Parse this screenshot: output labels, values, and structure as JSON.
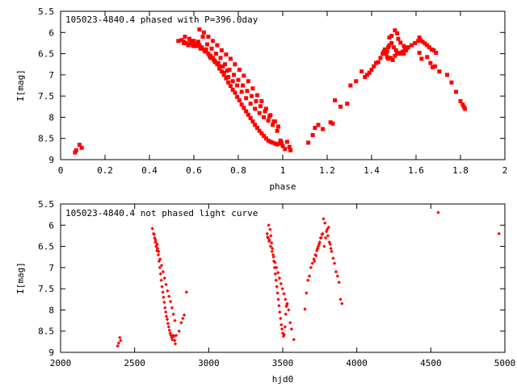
{
  "colors": {
    "points": "#ff0000",
    "axes": "#000000",
    "background": "#ffffff"
  },
  "chart_data": [
    {
      "type": "scatter",
      "title": "105023-4840.4 phased with P=396.0day",
      "xlabel": "phase",
      "ylabel": "I[mag]",
      "xlim": [
        0,
        2
      ],
      "ylim": [
        5.5,
        9
      ],
      "y_inverted": true,
      "grid": false,
      "marker": "filled square",
      "x_ticks": [
        "0",
        "0.2",
        "0.4",
        "0.6",
        "0.8",
        "1",
        "1.2",
        "1.4",
        "1.6",
        "1.8",
        "2"
      ],
      "y_ticks": [
        "5.5",
        "6",
        "6.5",
        "7",
        "7.5",
        "8",
        "8.5",
        "9"
      ],
      "series": [
        {
          "x": [
            0.065,
            0.07,
            0.085,
            0.095,
            0.53,
            0.545,
            0.555,
            0.565,
            0.575,
            0.585,
            0.595,
            0.605,
            0.615,
            0.625,
            0.635,
            0.645,
            0.655,
            0.665,
            0.675,
            0.685,
            0.695,
            0.705,
            0.715,
            0.725,
            0.735,
            0.745,
            0.755,
            0.765,
            0.775,
            0.785,
            0.795,
            0.805,
            0.815,
            0.825,
            0.835,
            0.845,
            0.855,
            0.865,
            0.875,
            0.885,
            0.895,
            0.905,
            0.915,
            0.925,
            0.935,
            0.945,
            0.955,
            0.965,
            0.975,
            0.985,
            0.995,
            0.56,
            0.58,
            0.6,
            0.62,
            0.64,
            0.66,
            0.68,
            0.7,
            0.72,
            0.74,
            0.76,
            0.78,
            0.8,
            0.82,
            0.84,
            0.86,
            0.88,
            0.9,
            0.92,
            0.94,
            0.96,
            0.98,
            0.555,
            0.575,
            0.595,
            0.615,
            0.635,
            0.655,
            0.675,
            0.695,
            0.715,
            0.735,
            0.755,
            0.775,
            0.795,
            0.815,
            0.835,
            0.855,
            0.875,
            0.895,
            0.915,
            0.935,
            0.955,
            0.975,
            0.99,
            0.625,
            0.645,
            0.665,
            0.685,
            0.705,
            0.725,
            0.745,
            0.765,
            0.785,
            0.805,
            0.825,
            0.845,
            0.865,
            0.885,
            0.905,
            0.925,
            0.945,
            0.965,
            0.6,
            0.63,
            0.65,
            0.67,
            0.69,
            0.71,
            0.73,
            0.75,
            1.0,
            1.01,
            1.02,
            1.03,
            1.035,
            1.115,
            1.135,
            1.145,
            1.16,
            1.18,
            1.215,
            1.225,
            1.235,
            1.26,
            1.29,
            1.305,
            1.33,
            1.355,
            1.37,
            1.38,
            1.39,
            1.4,
            1.41,
            1.42,
            1.43,
            1.44,
            1.45,
            1.455,
            1.46,
            1.47,
            1.475,
            1.48,
            1.49,
            1.5,
            1.51,
            1.52,
            1.53,
            1.54,
            1.55,
            1.56,
            1.48,
            1.49,
            1.505,
            1.515,
            1.52,
            1.53,
            1.545,
            1.465,
            1.47,
            1.475,
            1.485,
            1.495,
            1.505,
            1.515,
            1.525,
            1.535,
            1.545,
            1.555,
            1.565,
            1.58,
            1.595,
            1.61,
            1.615,
            1.62,
            1.63,
            1.64,
            1.65,
            1.66,
            1.67,
            1.68,
            1.69,
            1.615,
            1.625,
            1.65,
            1.665,
            1.675,
            1.685,
            1.705,
            1.74,
            1.76,
            1.78,
            1.8,
            1.81,
            1.815,
            1.82
          ],
          "y": [
            8.83,
            8.78,
            8.65,
            8.72,
            6.2,
            6.18,
            6.22,
            6.25,
            6.28,
            6.24,
            6.2,
            6.3,
            6.26,
            6.3,
            6.35,
            6.4,
            6.45,
            6.5,
            6.55,
            6.6,
            6.68,
            6.75,
            6.85,
            6.92,
            7.0,
            7.08,
            7.18,
            7.26,
            7.35,
            7.42,
            7.52,
            7.6,
            7.7,
            7.78,
            7.86,
            7.94,
            8.02,
            8.1,
            8.18,
            8.25,
            8.32,
            8.38,
            8.44,
            8.5,
            8.55,
            8.58,
            8.6,
            8.62,
            8.64,
            8.62,
            8.6,
            6.1,
            6.15,
            6.2,
            6.22,
            6.1,
            6.28,
            6.38,
            6.5,
            6.6,
            6.75,
            6.88,
            7.0,
            7.12,
            7.25,
            7.38,
            7.5,
            7.62,
            7.74,
            7.86,
            7.98,
            8.1,
            8.22,
            6.25,
            6.3,
            6.3,
            6.32,
            6.36,
            6.4,
            6.6,
            6.7,
            6.8,
            6.95,
            7.05,
            7.15,
            7.25,
            7.4,
            7.55,
            7.68,
            7.8,
            7.9,
            8.0,
            8.08,
            8.18,
            8.32,
            8.55,
            5.93,
            6.0,
            6.1,
            6.2,
            6.3,
            6.42,
            6.52,
            6.62,
            6.75,
            6.88,
            7.02,
            7.15,
            7.32,
            7.48,
            7.62,
            7.8,
            7.95,
            8.1,
            6.32,
            6.38,
            6.45,
            6.55,
            6.65,
            6.72,
            6.8,
            6.9,
            8.68,
            8.75,
            8.58,
            8.7,
            8.78,
            8.6,
            8.42,
            8.25,
            8.18,
            8.28,
            8.12,
            8.15,
            7.6,
            7.75,
            7.68,
            7.25,
            7.15,
            6.92,
            7.05,
            7.0,
            6.95,
            6.88,
            6.8,
            6.72,
            6.7,
            6.6,
            6.5,
            6.45,
            6.4,
            6.45,
            6.35,
            6.3,
            6.25,
            6.35,
            6.42,
            6.48,
            6.5,
            6.45,
            6.4,
            6.36,
            6.12,
            6.08,
            5.95,
            6.02,
            6.15,
            6.24,
            6.32,
            6.5,
            6.58,
            6.62,
            6.6,
            6.65,
            6.55,
            6.5,
            6.48,
            6.5,
            6.5,
            6.42,
            6.35,
            6.3,
            6.25,
            6.2,
            6.12,
            6.18,
            6.22,
            6.26,
            6.3,
            6.35,
            6.4,
            6.42,
            6.48,
            6.48,
            6.62,
            6.58,
            6.72,
            6.82,
            6.8,
            6.92,
            7.0,
            7.18,
            7.4,
            7.62,
            7.7,
            7.75,
            7.8
          ]
        }
      ]
    },
    {
      "type": "scatter",
      "title": "105023-4840.4 not phased light curve",
      "xlabel": "hjd0",
      "ylabel": "I[mag]",
      "xlim": [
        2000,
        5000
      ],
      "ylim": [
        5.5,
        9
      ],
      "y_inverted": true,
      "grid": false,
      "marker": "filled diamond",
      "x_ticks": [
        "2000",
        "2500",
        "3000",
        "3500",
        "4000",
        "4500",
        "5000"
      ],
      "y_ticks": [
        "5.5",
        "6",
        "6.5",
        "7",
        "7.5",
        "8",
        "8.5",
        "9"
      ],
      "series": [
        {
          "x": [
            2385,
            2392,
            2400,
            2405,
            2620,
            2628,
            2635,
            2640,
            2645,
            2650,
            2655,
            2660,
            2665,
            2670,
            2675,
            2680,
            2685,
            2690,
            2695,
            2700,
            2705,
            2710,
            2715,
            2720,
            2725,
            2730,
            2735,
            2740,
            2745,
            2750,
            2755,
            2760,
            2765,
            2770,
            2775,
            2632,
            2642,
            2652,
            2662,
            2672,
            2682,
            2692,
            2702,
            2712,
            2722,
            2732,
            2742,
            2752,
            2762,
            2772,
            2780,
            2800,
            2815,
            2825,
            2835,
            2850,
            3395,
            3400,
            3405,
            3410,
            3415,
            3420,
            3425,
            3430,
            3435,
            3440,
            3445,
            3450,
            3455,
            3460,
            3465,
            3470,
            3475,
            3480,
            3485,
            3490,
            3495,
            3500,
            3505,
            3510,
            3515,
            3520,
            3525,
            3530,
            3540,
            3550,
            3560,
            3575,
            3398,
            3408,
            3418,
            3428,
            3438,
            3448,
            3458,
            3468,
            3478,
            3488,
            3498,
            3508,
            3518,
            3528,
            3650,
            3660,
            3670,
            3680,
            3690,
            3700,
            3710,
            3720,
            3730,
            3740,
            3750,
            3760,
            3770,
            3780,
            3790,
            3800,
            3810,
            3820,
            3830,
            3840,
            3850,
            3860,
            3870,
            3880,
            3890,
            3900,
            3715,
            3725,
            3735,
            3745,
            3755,
            3765,
            3775,
            3785,
            3795,
            3805,
            3815,
            3825,
            4550,
            4960
          ],
          "y": [
            8.85,
            8.78,
            8.65,
            8.72,
            6.08,
            6.2,
            6.3,
            6.4,
            6.5,
            6.6,
            6.55,
            6.7,
            6.85,
            7.0,
            7.15,
            7.3,
            7.45,
            7.58,
            7.7,
            7.82,
            7.95,
            8.05,
            8.15,
            8.22,
            8.32,
            8.4,
            8.48,
            8.55,
            8.6,
            8.65,
            8.7,
            8.6,
            8.62,
            8.72,
            8.8,
            6.22,
            6.35,
            6.45,
            6.62,
            6.8,
            6.95,
            7.1,
            7.25,
            7.4,
            7.55,
            7.68,
            7.8,
            7.95,
            8.1,
            8.25,
            8.6,
            8.5,
            8.3,
            8.2,
            8.12,
            7.58,
            6.2,
            6.3,
            6.0,
            6.35,
            6.1,
            6.25,
            6.42,
            6.55,
            6.7,
            6.85,
            7.0,
            7.15,
            7.3,
            7.45,
            7.6,
            7.75,
            7.9,
            8.05,
            8.2,
            8.35,
            8.45,
            8.55,
            8.62,
            8.58,
            8.4,
            8.1,
            7.92,
            7.85,
            8.0,
            8.3,
            8.45,
            8.7,
            6.28,
            6.38,
            6.5,
            6.62,
            6.75,
            6.88,
            7.0,
            7.12,
            7.25,
            7.38,
            7.5,
            7.62,
            7.75,
            7.88,
            7.98,
            7.6,
            7.3,
            7.2,
            7.0,
            6.9,
            6.8,
            6.7,
            6.6,
            6.5,
            6.4,
            6.3,
            6.2,
            6.5,
            6.3,
            6.1,
            6.05,
            6.45,
            6.62,
            6.78,
            6.9,
            7.1,
            7.2,
            7.35,
            7.75,
            7.85,
            6.85,
            6.72,
            6.55,
            6.45,
            6.3,
            6.22,
            5.85,
            5.95,
            6.15,
            6.25,
            6.4,
            6.55,
            5.7,
            6.2
          ]
        }
      ]
    }
  ]
}
